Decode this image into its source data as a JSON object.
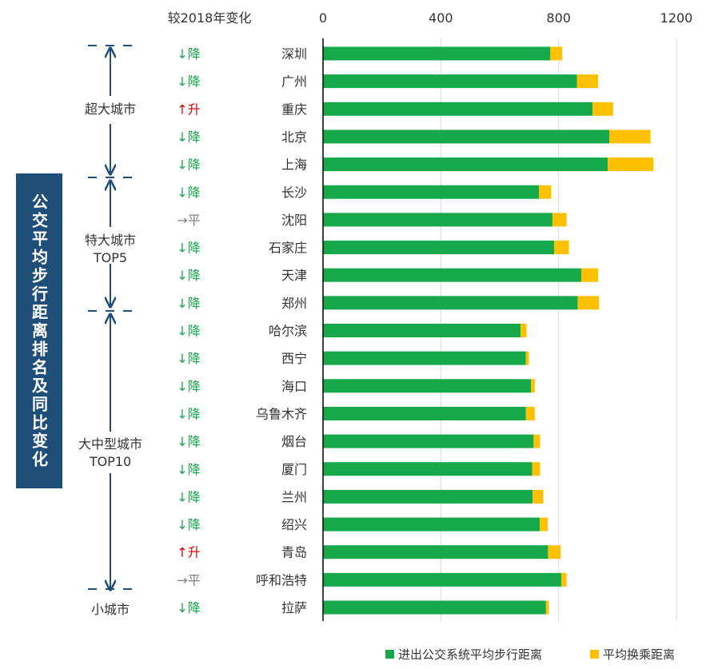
{
  "colors": {
    "walk": "#16a84a",
    "transfer": "#ffc000",
    "down": "#16a84a",
    "up": "#e00000",
    "flat": "#808080",
    "text": "#333333",
    "bracket": "#1f4e79",
    "grid": "#d9d9d9",
    "axis": "#000000",
    "box": "#1f4e79"
  },
  "vertical_title": "公交平均步行距离排名及同比变化",
  "change_header": "较2018年变化",
  "change_labels": {
    "down": "↓降",
    "up": "↑升",
    "flat": "→平"
  },
  "groups": [
    {
      "label": [
        "超大城市"
      ]
    },
    {
      "label": [
        "特大城市",
        "TOP5"
      ]
    },
    {
      "label": [
        "大中型城市",
        "TOP10"
      ]
    },
    {
      "label": [
        "小城市"
      ]
    }
  ],
  "chart_data": {
    "type": "bar",
    "orientation": "horizontal",
    "stacked": true,
    "xlim": [
      0,
      1200
    ],
    "x_ticks": [
      0,
      400,
      800,
      1200
    ],
    "x_tick_labels": [
      "0",
      "400",
      "800",
      "1200"
    ],
    "categories": [
      "深圳",
      "广州",
      "重庆",
      "北京",
      "上海",
      "长沙",
      "沈阳",
      "石家庄",
      "天津",
      "郑州",
      "哈尔滨",
      "西宁",
      "海口",
      "乌鲁木齐",
      "烟台",
      "厦门",
      "兰州",
      "绍兴",
      "青岛",
      "呼和浩特",
      "拉萨"
    ],
    "change": [
      "down",
      "down",
      "up",
      "down",
      "down",
      "down",
      "flat",
      "down",
      "down",
      "down",
      "down",
      "down",
      "down",
      "down",
      "down",
      "down",
      "down",
      "down",
      "up",
      "flat",
      "down"
    ],
    "series": [
      {
        "name": "进出公交系统平均步行距离",
        "values": [
          772,
          862,
          915,
          972,
          967,
          733,
          779,
          785,
          877,
          865,
          671,
          689,
          706,
          689,
          715,
          710,
          712,
          736,
          764,
          809,
          757
        ]
      },
      {
        "name": "平均换乘距离",
        "values": [
          40,
          72,
          70,
          140,
          155,
          42,
          48,
          50,
          57,
          72,
          20,
          10,
          13,
          30,
          22,
          27,
          36,
          27,
          43,
          18,
          10
        ]
      }
    ],
    "legend_position": "bottom-right",
    "grid": true
  }
}
